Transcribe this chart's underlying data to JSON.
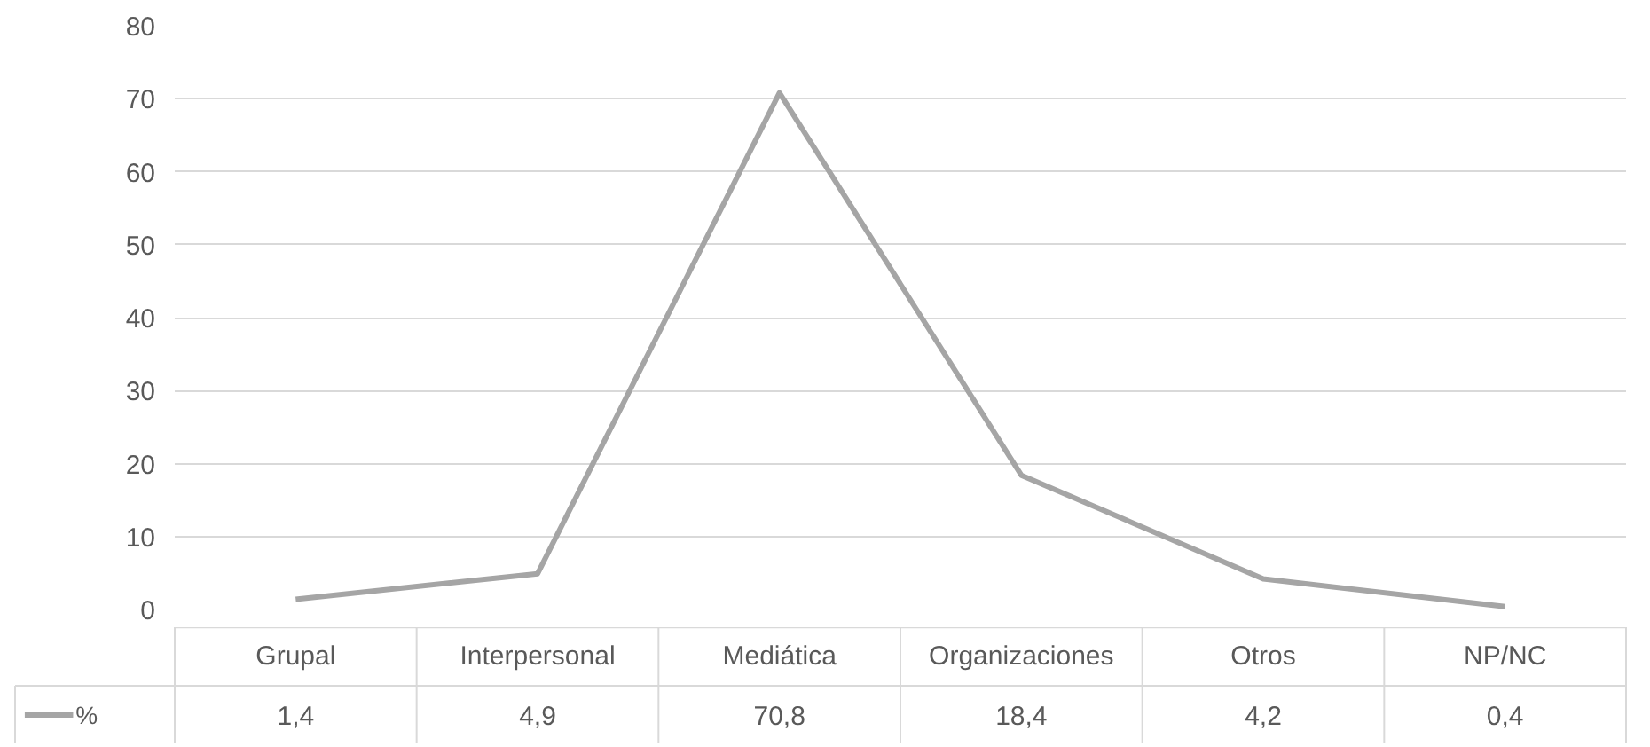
{
  "chart_data": {
    "type": "line",
    "categories": [
      "Grupal",
      "Interpersonal",
      "Mediática",
      "Organizaciones",
      "Otros",
      "NP/NC"
    ],
    "series": [
      {
        "name": "%",
        "color": "#a5a5a5",
        "values": [
          1.4,
          4.9,
          70.8,
          18.4,
          4.2,
          0.4
        ],
        "value_labels": [
          "1,4",
          "4,9",
          "70,8",
          "18,4",
          "4,2",
          "0,4"
        ]
      }
    ],
    "ylim": [
      0,
      80
    ],
    "yticks": [
      0,
      10,
      20,
      30,
      40,
      50,
      60,
      70,
      80
    ],
    "grid": "y",
    "legend": "bottom",
    "marker": "none",
    "line_style": "solid"
  }
}
